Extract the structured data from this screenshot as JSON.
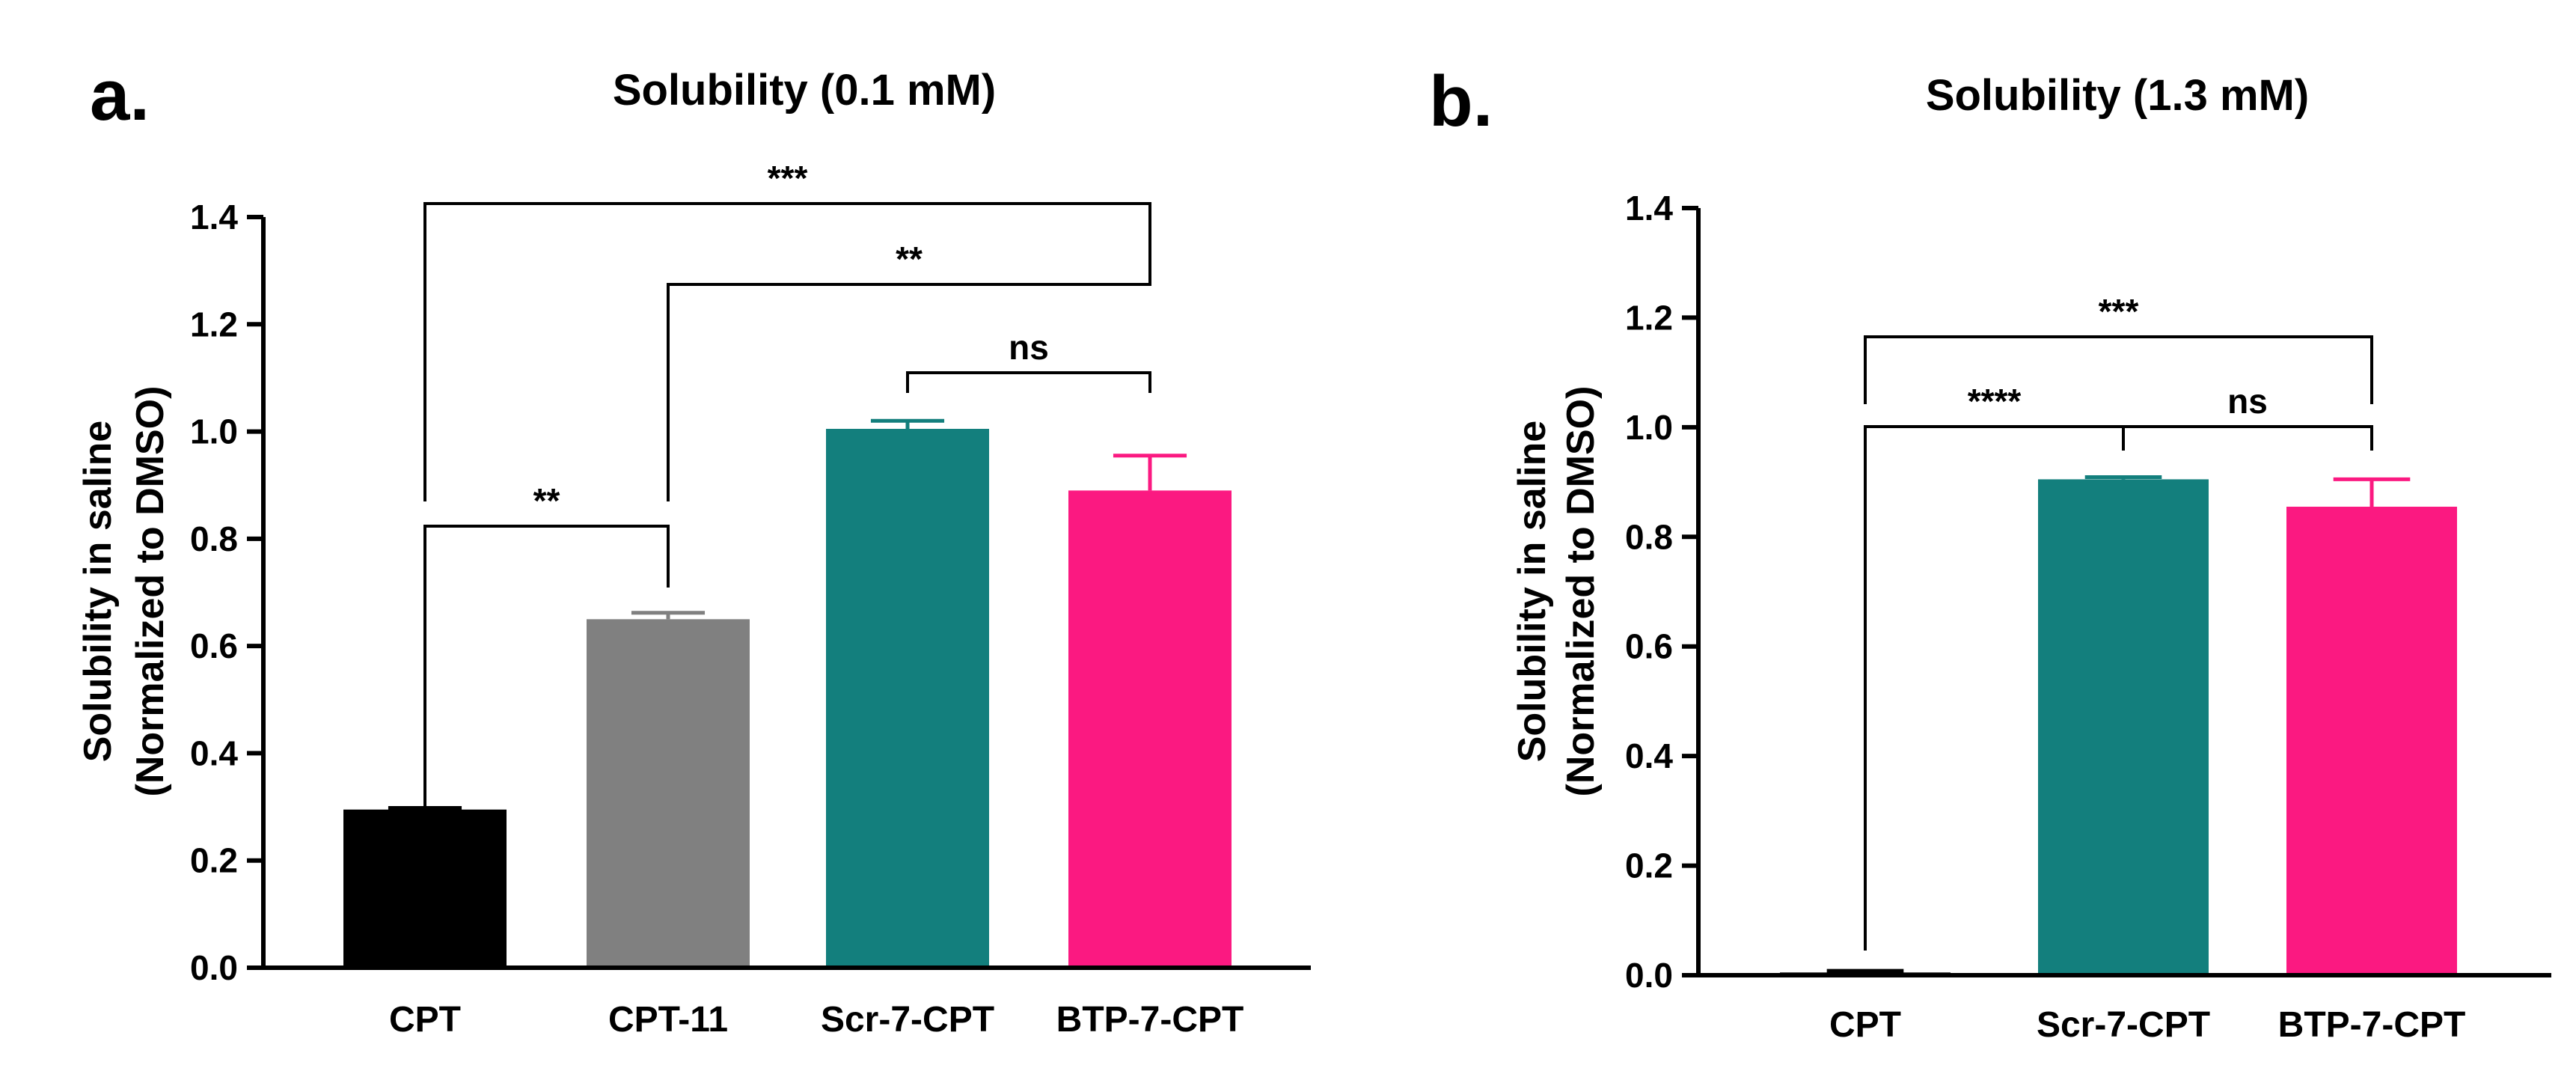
{
  "chart_data": [
    {
      "type": "bar",
      "panel_label": "a.",
      "title": "Solubility (0.1 mM)",
      "ylabel_line1": "Solubility in saline",
      "ylabel_line2": "(Normalized to DMSO)",
      "xlabel": "",
      "ylim": [
        0,
        1.4
      ],
      "yticks": [
        "0.0",
        "0.2",
        "0.4",
        "0.6",
        "0.8",
        "1.0",
        "1.2",
        "1.4"
      ],
      "categories": [
        "CPT",
        "CPT-11",
        "Scr-7-CPT",
        "BTP-7-CPT"
      ],
      "values": [
        0.295,
        0.65,
        1.005,
        0.89
      ],
      "errors": [
        0.003,
        0.012,
        0.015,
        0.065
      ],
      "colors": [
        "#000000",
        "#808080",
        "#137f7d",
        "#fb1981"
      ],
      "comparisons": [
        {
          "from": 0,
          "to": 3,
          "label": "***"
        },
        {
          "from": 1,
          "to": 3,
          "label": "**"
        },
        {
          "from": 2,
          "to": 3,
          "label": "ns"
        },
        {
          "from": 0,
          "to": 1,
          "label": "**"
        }
      ]
    },
    {
      "type": "bar",
      "panel_label": "b.",
      "title": "Solubility (1.3 mM)",
      "ylabel_line1": "Solubility in saline",
      "ylabel_line2": "(Normalized to DMSO)",
      "xlabel": "",
      "ylim": [
        0,
        1.4
      ],
      "yticks": [
        "0.0",
        "0.2",
        "0.4",
        "0.6",
        "0.8",
        "1.0",
        "1.2",
        "1.4"
      ],
      "categories": [
        "CPT",
        "Scr-7-CPT",
        "BTP-7-CPT"
      ],
      "values": [
        0.005,
        0.905,
        0.855
      ],
      "errors": [
        0.003,
        0.004,
        0.05
      ],
      "colors": [
        "#000000",
        "#137f7d",
        "#fb1981"
      ],
      "comparisons": [
        {
          "from": 0,
          "to": 2,
          "label": "***"
        },
        {
          "from": 0,
          "to": 1,
          "label": "****"
        },
        {
          "from": 1,
          "to": 2,
          "label": "ns"
        }
      ]
    }
  ]
}
